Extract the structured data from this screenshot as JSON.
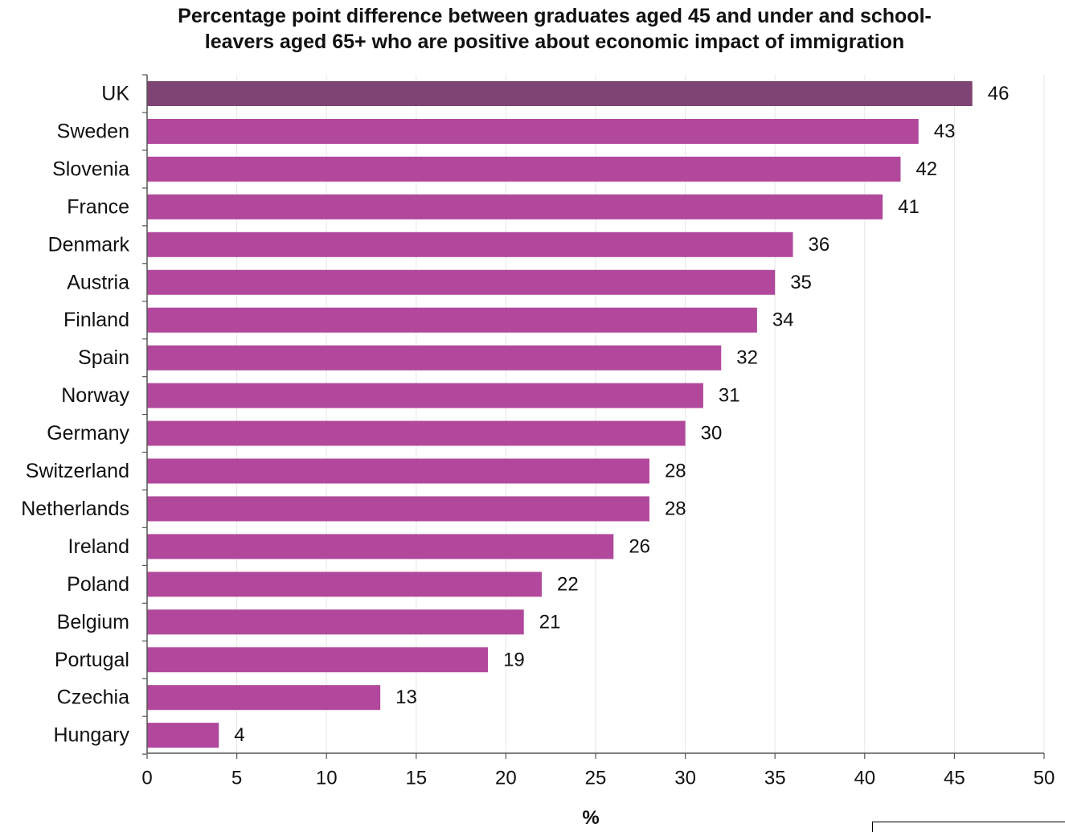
{
  "chart_data": {
    "type": "bar",
    "orientation": "horizontal",
    "title": "Percentage point difference between graduates aged 45 and under and school-leavers aged 65+ who are positive about economic impact of immigration",
    "title_lines": [
      "Percentage point difference between graduates aged 45 and under and school-",
      "leavers aged 65+ who are positive about economic impact of immigration"
    ],
    "xlabel": "%",
    "ylabel": "",
    "categories": [
      "UK",
      "Sweden",
      "Slovenia",
      "France",
      "Denmark",
      "Austria",
      "Finland",
      "Spain",
      "Norway",
      "Germany",
      "Switzerland",
      "Netherlands",
      "Ireland",
      "Poland",
      "Belgium",
      "Portugal",
      "Czechia",
      "Hungary"
    ],
    "values": [
      46,
      43,
      42,
      41,
      36,
      35,
      34,
      32,
      31,
      30,
      28,
      28,
      26,
      22,
      21,
      19,
      13,
      4
    ],
    "xlim": [
      0,
      50
    ],
    "xticks": [
      0,
      5,
      10,
      15,
      20,
      25,
      30,
      35,
      40,
      45,
      50
    ],
    "grid": true,
    "highlight_category": "UK",
    "data_labels": true,
    "colors": {
      "bar": "#b1489b",
      "highlight_bar": "#7e4474",
      "grid": "#e6e6e6",
      "axis": "#555555",
      "text": "#111111"
    }
  }
}
